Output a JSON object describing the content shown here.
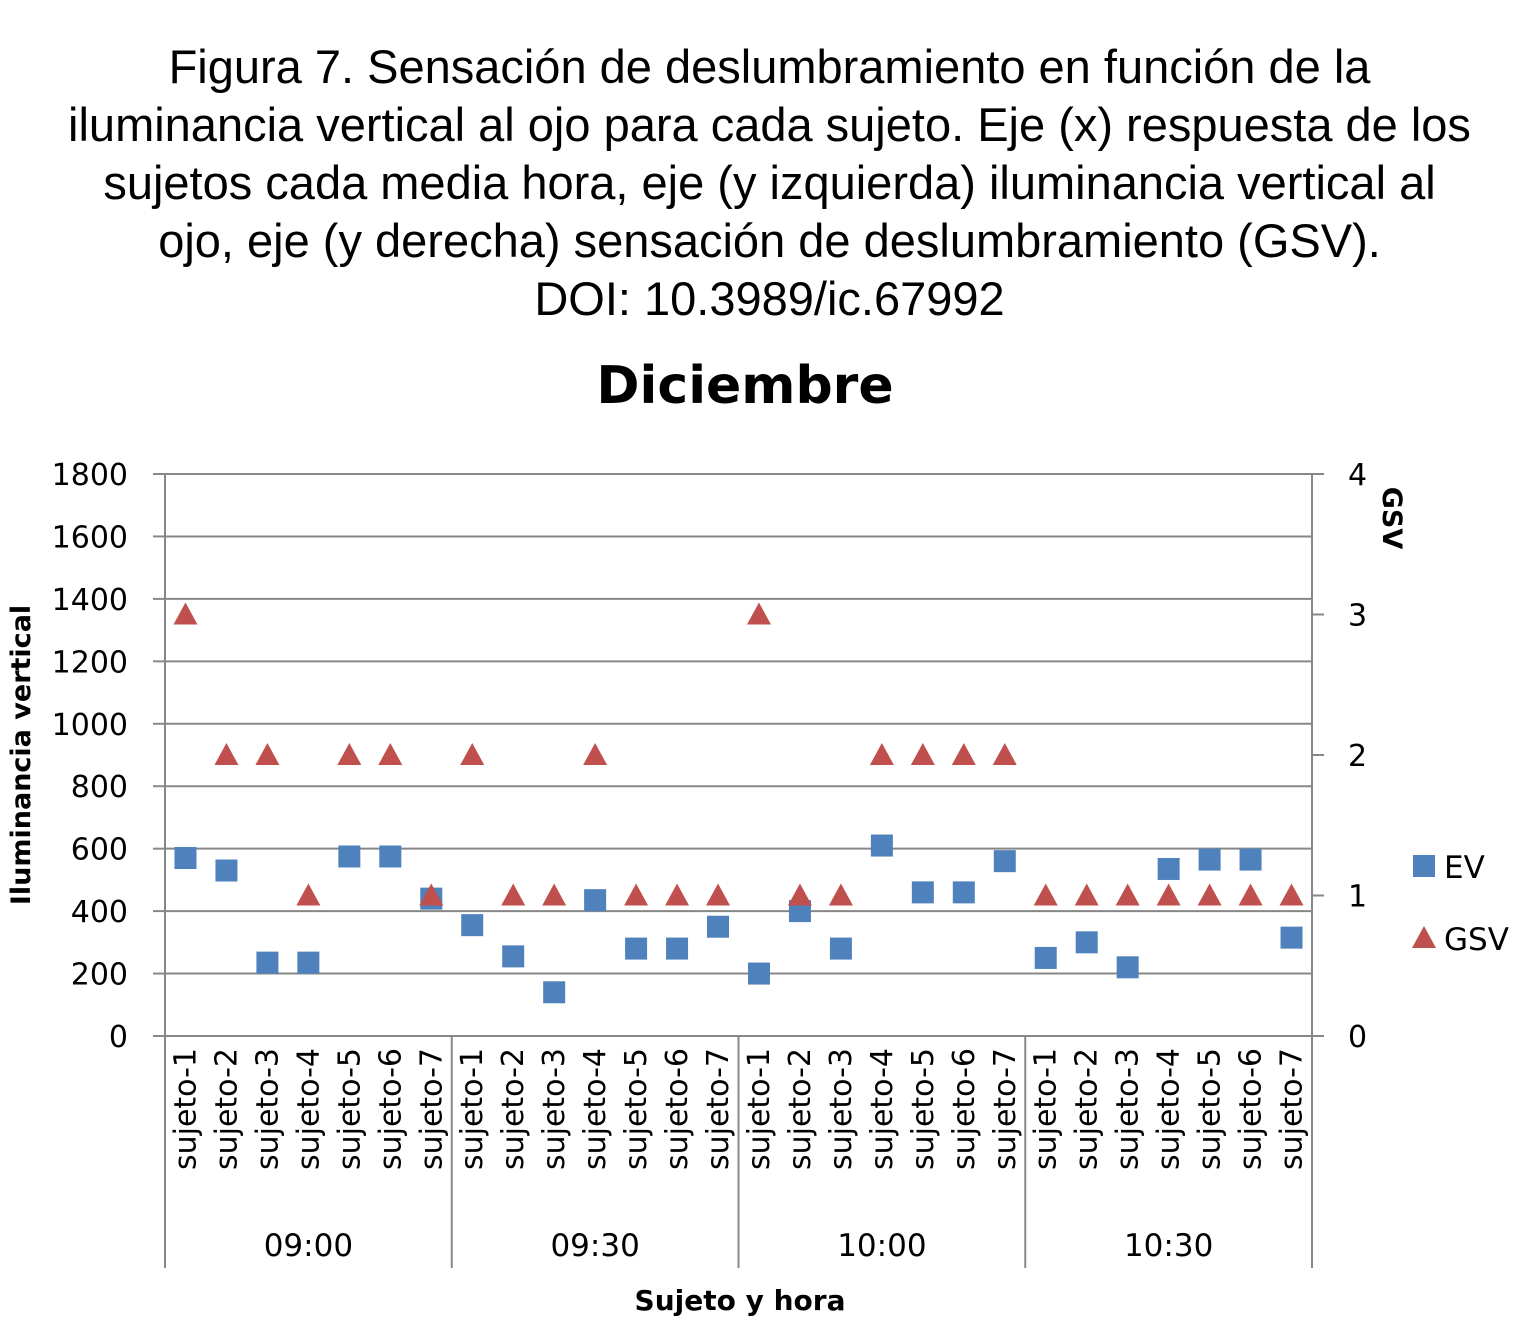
{
  "caption": {
    "lines": [
      "Figura 7. Sensación de deslumbramiento en función de la",
      "iluminancia vertical al ojo para cada sujeto. Eje (x) respuesta de los",
      "sujetos cada media hora, eje (y izquierda) iluminancia vertical al",
      "ojo, eje (y derecha) sensación de deslumbramiento (GSV).",
      "DOI: 10.3989/ic.67992"
    ]
  },
  "chart_data": {
    "type": "scatter",
    "title": "Diciembre",
    "xlabel": "Sujeto y hora",
    "ylabel": "Iluminancia vertical",
    "y2label": "GSV",
    "ylim": [
      0,
      1800
    ],
    "y2lim": [
      0,
      4
    ],
    "yticks": [
      0,
      200,
      400,
      600,
      800,
      1000,
      1200,
      1400,
      1600,
      1800
    ],
    "y2ticks": [
      0,
      1,
      2,
      3,
      4
    ],
    "grid": true,
    "legend_position": "right",
    "groups": [
      "09:00",
      "09:30",
      "10:00",
      "10:30"
    ],
    "categories": [
      "sujeto-1",
      "sujeto-2",
      "sujeto-3",
      "sujeto-4",
      "sujeto-5",
      "sujeto-6",
      "sujeto-7"
    ],
    "series": [
      {
        "name": "EV",
        "axis": "left",
        "marker": "square",
        "color": "#4f81bd",
        "values": [
          [
            570,
            530,
            235,
            235,
            575,
            575,
            440
          ],
          [
            355,
            255,
            140,
            435,
            280,
            280,
            350
          ],
          [
            200,
            400,
            280,
            610,
            460,
            460,
            560
          ],
          [
            250,
            300,
            220,
            535,
            565,
            565,
            315
          ]
        ]
      },
      {
        "name": "GSV",
        "axis": "right",
        "marker": "triangle",
        "color": "#c0504d",
        "values": [
          [
            3,
            2,
            2,
            1,
            2,
            2,
            1
          ],
          [
            2,
            1,
            1,
            2,
            1,
            1,
            1
          ],
          [
            3,
            1,
            1,
            2,
            2,
            2,
            2
          ],
          [
            1,
            1,
            1,
            1,
            1,
            1,
            1
          ]
        ]
      }
    ]
  }
}
